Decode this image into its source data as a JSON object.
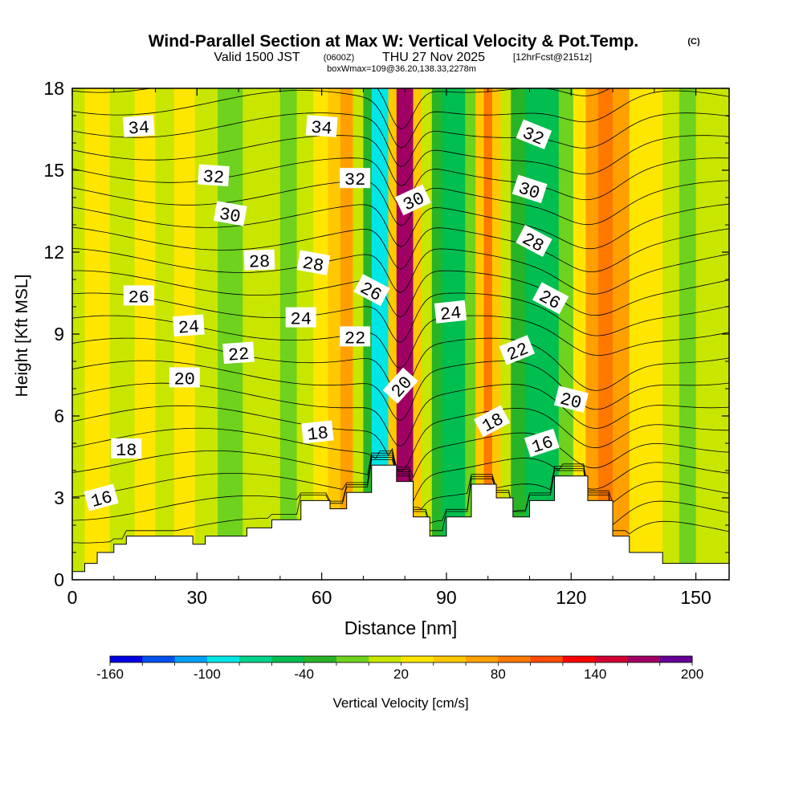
{
  "chart_data": {
    "type": "heatmap",
    "title": "Wind-Parallel Section at Max W: Vertical Velocity & Pot.Temp.",
    "title_mark": "(C)",
    "subtitle": {
      "valid_prefix": "Valid 1500 JST",
      "utc": "(0600Z)",
      "date": "THU 27 Nov 2025",
      "forecast": "[12hrFcst@2151z]"
    },
    "box_info": "boxWmax=109@36.20,138.33,2278m",
    "xlabel": "Distance [nm]",
    "ylabel": "Height [Kft MSL]",
    "xlim": [
      0,
      158
    ],
    "ylim": [
      0,
      18
    ],
    "x_ticks": [
      0,
      30,
      60,
      90,
      120,
      150
    ],
    "y_ticks": [
      0,
      3,
      6,
      9,
      12,
      15,
      18
    ],
    "colorbar": {
      "label": "Vertical Velocity [cm/s]",
      "tick_labels": [
        "-160",
        "-100",
        "-40",
        "20",
        "80",
        "140",
        "200"
      ],
      "bounds": [
        -160,
        200
      ],
      "colors": [
        "#0000e6",
        "#0050f0",
        "#00a0f5",
        "#00e6e6",
        "#00d28c",
        "#00be50",
        "#28b428",
        "#6ed21e",
        "#c8e600",
        "#ffe600",
        "#ffc800",
        "#ffa000",
        "#ff7800",
        "#ff4b00",
        "#ff0000",
        "#d20032",
        "#a00064",
        "#640096"
      ]
    },
    "velocity_columns": [
      {
        "x": 0,
        "w": 10
      },
      {
        "x": 6,
        "w": 20
      },
      {
        "x": 12,
        "w": 10
      },
      {
        "x": 18,
        "w": 20
      },
      {
        "x": 22,
        "w": 0
      },
      {
        "x": 27,
        "w": 20
      },
      {
        "x": 32,
        "w": 10
      },
      {
        "x": 38,
        "w": -10
      },
      {
        "x": 44,
        "w": 0
      },
      {
        "x": 48,
        "w": 10
      },
      {
        "x": 52,
        "w": -20
      },
      {
        "x": 56,
        "w": 0
      },
      {
        "x": 60,
        "w": 20
      },
      {
        "x": 63,
        "w": 40
      },
      {
        "x": 66,
        "w": 60
      },
      {
        "x": 69,
        "w": 10
      },
      {
        "x": 71,
        "w": -40
      },
      {
        "x": 73,
        "w": -100
      },
      {
        "x": 75,
        "w": -100
      },
      {
        "x": 77,
        "w": 50
      },
      {
        "x": 79,
        "w": 170
      },
      {
        "x": 81,
        "w": 160
      },
      {
        "x": 83,
        "w": 50
      },
      {
        "x": 85,
        "w": 0
      },
      {
        "x": 88,
        "w": -30
      },
      {
        "x": 90,
        "w": -60
      },
      {
        "x": 93,
        "w": -50
      },
      {
        "x": 96,
        "w": -10
      },
      {
        "x": 98,
        "w": 40
      },
      {
        "x": 100,
        "w": 80
      },
      {
        "x": 102,
        "w": 50
      },
      {
        "x": 104,
        "w": 0
      },
      {
        "x": 107,
        "w": -40
      },
      {
        "x": 111,
        "w": -60
      },
      {
        "x": 115,
        "w": -50
      },
      {
        "x": 119,
        "w": -10
      },
      {
        "x": 122,
        "w": 30
      },
      {
        "x": 125,
        "w": 70
      },
      {
        "x": 128,
        "w": 90
      },
      {
        "x": 132,
        "w": 60
      },
      {
        "x": 136,
        "w": 30
      },
      {
        "x": 140,
        "w": 20
      },
      {
        "x": 144,
        "w": 10
      },
      {
        "x": 148,
        "w": -10
      },
      {
        "x": 152,
        "w": 10
      },
      {
        "x": 158,
        "w": 0
      }
    ],
    "terrain": [
      {
        "x": 0,
        "h": 0.3
      },
      {
        "x": 3,
        "h": 0.6
      },
      {
        "x": 6,
        "h": 1.0
      },
      {
        "x": 10,
        "h": 1.3
      },
      {
        "x": 13,
        "h": 1.6
      },
      {
        "x": 29,
        "h": 1.3
      },
      {
        "x": 32,
        "h": 1.6
      },
      {
        "x": 42,
        "h": 1.9
      },
      {
        "x": 48,
        "h": 2.2
      },
      {
        "x": 55,
        "h": 2.9
      },
      {
        "x": 62,
        "h": 2.6
      },
      {
        "x": 66,
        "h": 3.2
      },
      {
        "x": 72,
        "h": 4.2
      },
      {
        "x": 78,
        "h": 3.6
      },
      {
        "x": 82,
        "h": 2.3
      },
      {
        "x": 86,
        "h": 1.6
      },
      {
        "x": 90,
        "h": 2.3
      },
      {
        "x": 96,
        "h": 3.5
      },
      {
        "x": 102,
        "h": 3.0
      },
      {
        "x": 106,
        "h": 2.3
      },
      {
        "x": 110,
        "h": 2.9
      },
      {
        "x": 116,
        "h": 3.8
      },
      {
        "x": 124,
        "h": 2.9
      },
      {
        "x": 130,
        "h": 1.6
      },
      {
        "x": 134,
        "h": 1.0
      },
      {
        "x": 142,
        "h": 0.6
      },
      {
        "x": 158,
        "h": 0.6
      }
    ],
    "isentropes": [
      15,
      16,
      17,
      18,
      19,
      20,
      21,
      22,
      23,
      24,
      25,
      26,
      27,
      28,
      29,
      30,
      31,
      32,
      33,
      34,
      35
    ],
    "contour_labels": [
      {
        "x": 16,
        "y": 16.6,
        "text": "34",
        "rot": -4
      },
      {
        "x": 60,
        "y": 16.6,
        "text": "34",
        "rot": 4
      },
      {
        "x": 111,
        "y": 16.3,
        "text": "32",
        "rot": 22
      },
      {
        "x": 34,
        "y": 14.8,
        "text": "32",
        "rot": 4
      },
      {
        "x": 68,
        "y": 14.7,
        "text": "32",
        "rot": 0
      },
      {
        "x": 82,
        "y": 13.9,
        "text": "30",
        "rot": -25
      },
      {
        "x": 110,
        "y": 14.3,
        "text": "30",
        "rot": 18
      },
      {
        "x": 38,
        "y": 13.4,
        "text": "30",
        "rot": 10
      },
      {
        "x": 111,
        "y": 12.4,
        "text": "28",
        "rot": 28
      },
      {
        "x": 45,
        "y": 11.7,
        "text": "28",
        "rot": -2
      },
      {
        "x": 58,
        "y": 11.6,
        "text": "28",
        "rot": 10
      },
      {
        "x": 72,
        "y": 10.6,
        "text": "26",
        "rot": 28
      },
      {
        "x": 115,
        "y": 10.3,
        "text": "26",
        "rot": 28
      },
      {
        "x": 16,
        "y": 10.4,
        "text": "26",
        "rot": 0
      },
      {
        "x": 91,
        "y": 9.8,
        "text": "24",
        "rot": -6
      },
      {
        "x": 28,
        "y": 9.3,
        "text": "24",
        "rot": -4
      },
      {
        "x": 55,
        "y": 9.6,
        "text": "24",
        "rot": 0
      },
      {
        "x": 68,
        "y": 8.9,
        "text": "22",
        "rot": 0
      },
      {
        "x": 40,
        "y": 8.3,
        "text": "22",
        "rot": -4
      },
      {
        "x": 107,
        "y": 8.4,
        "text": "22",
        "rot": -22
      },
      {
        "x": 27,
        "y": 7.4,
        "text": "20",
        "rot": 0
      },
      {
        "x": 79,
        "y": 7.1,
        "text": "20",
        "rot": -48
      },
      {
        "x": 120,
        "y": 6.6,
        "text": "20",
        "rot": 14
      },
      {
        "x": 101,
        "y": 5.8,
        "text": "18",
        "rot": -28
      },
      {
        "x": 59,
        "y": 5.4,
        "text": "18",
        "rot": -6
      },
      {
        "x": 13,
        "y": 4.8,
        "text": "18",
        "rot": 0
      },
      {
        "x": 113,
        "y": 5.0,
        "text": "16",
        "rot": -18
      },
      {
        "x": 7,
        "y": 3.0,
        "text": "16",
        "rot": -15
      }
    ]
  }
}
